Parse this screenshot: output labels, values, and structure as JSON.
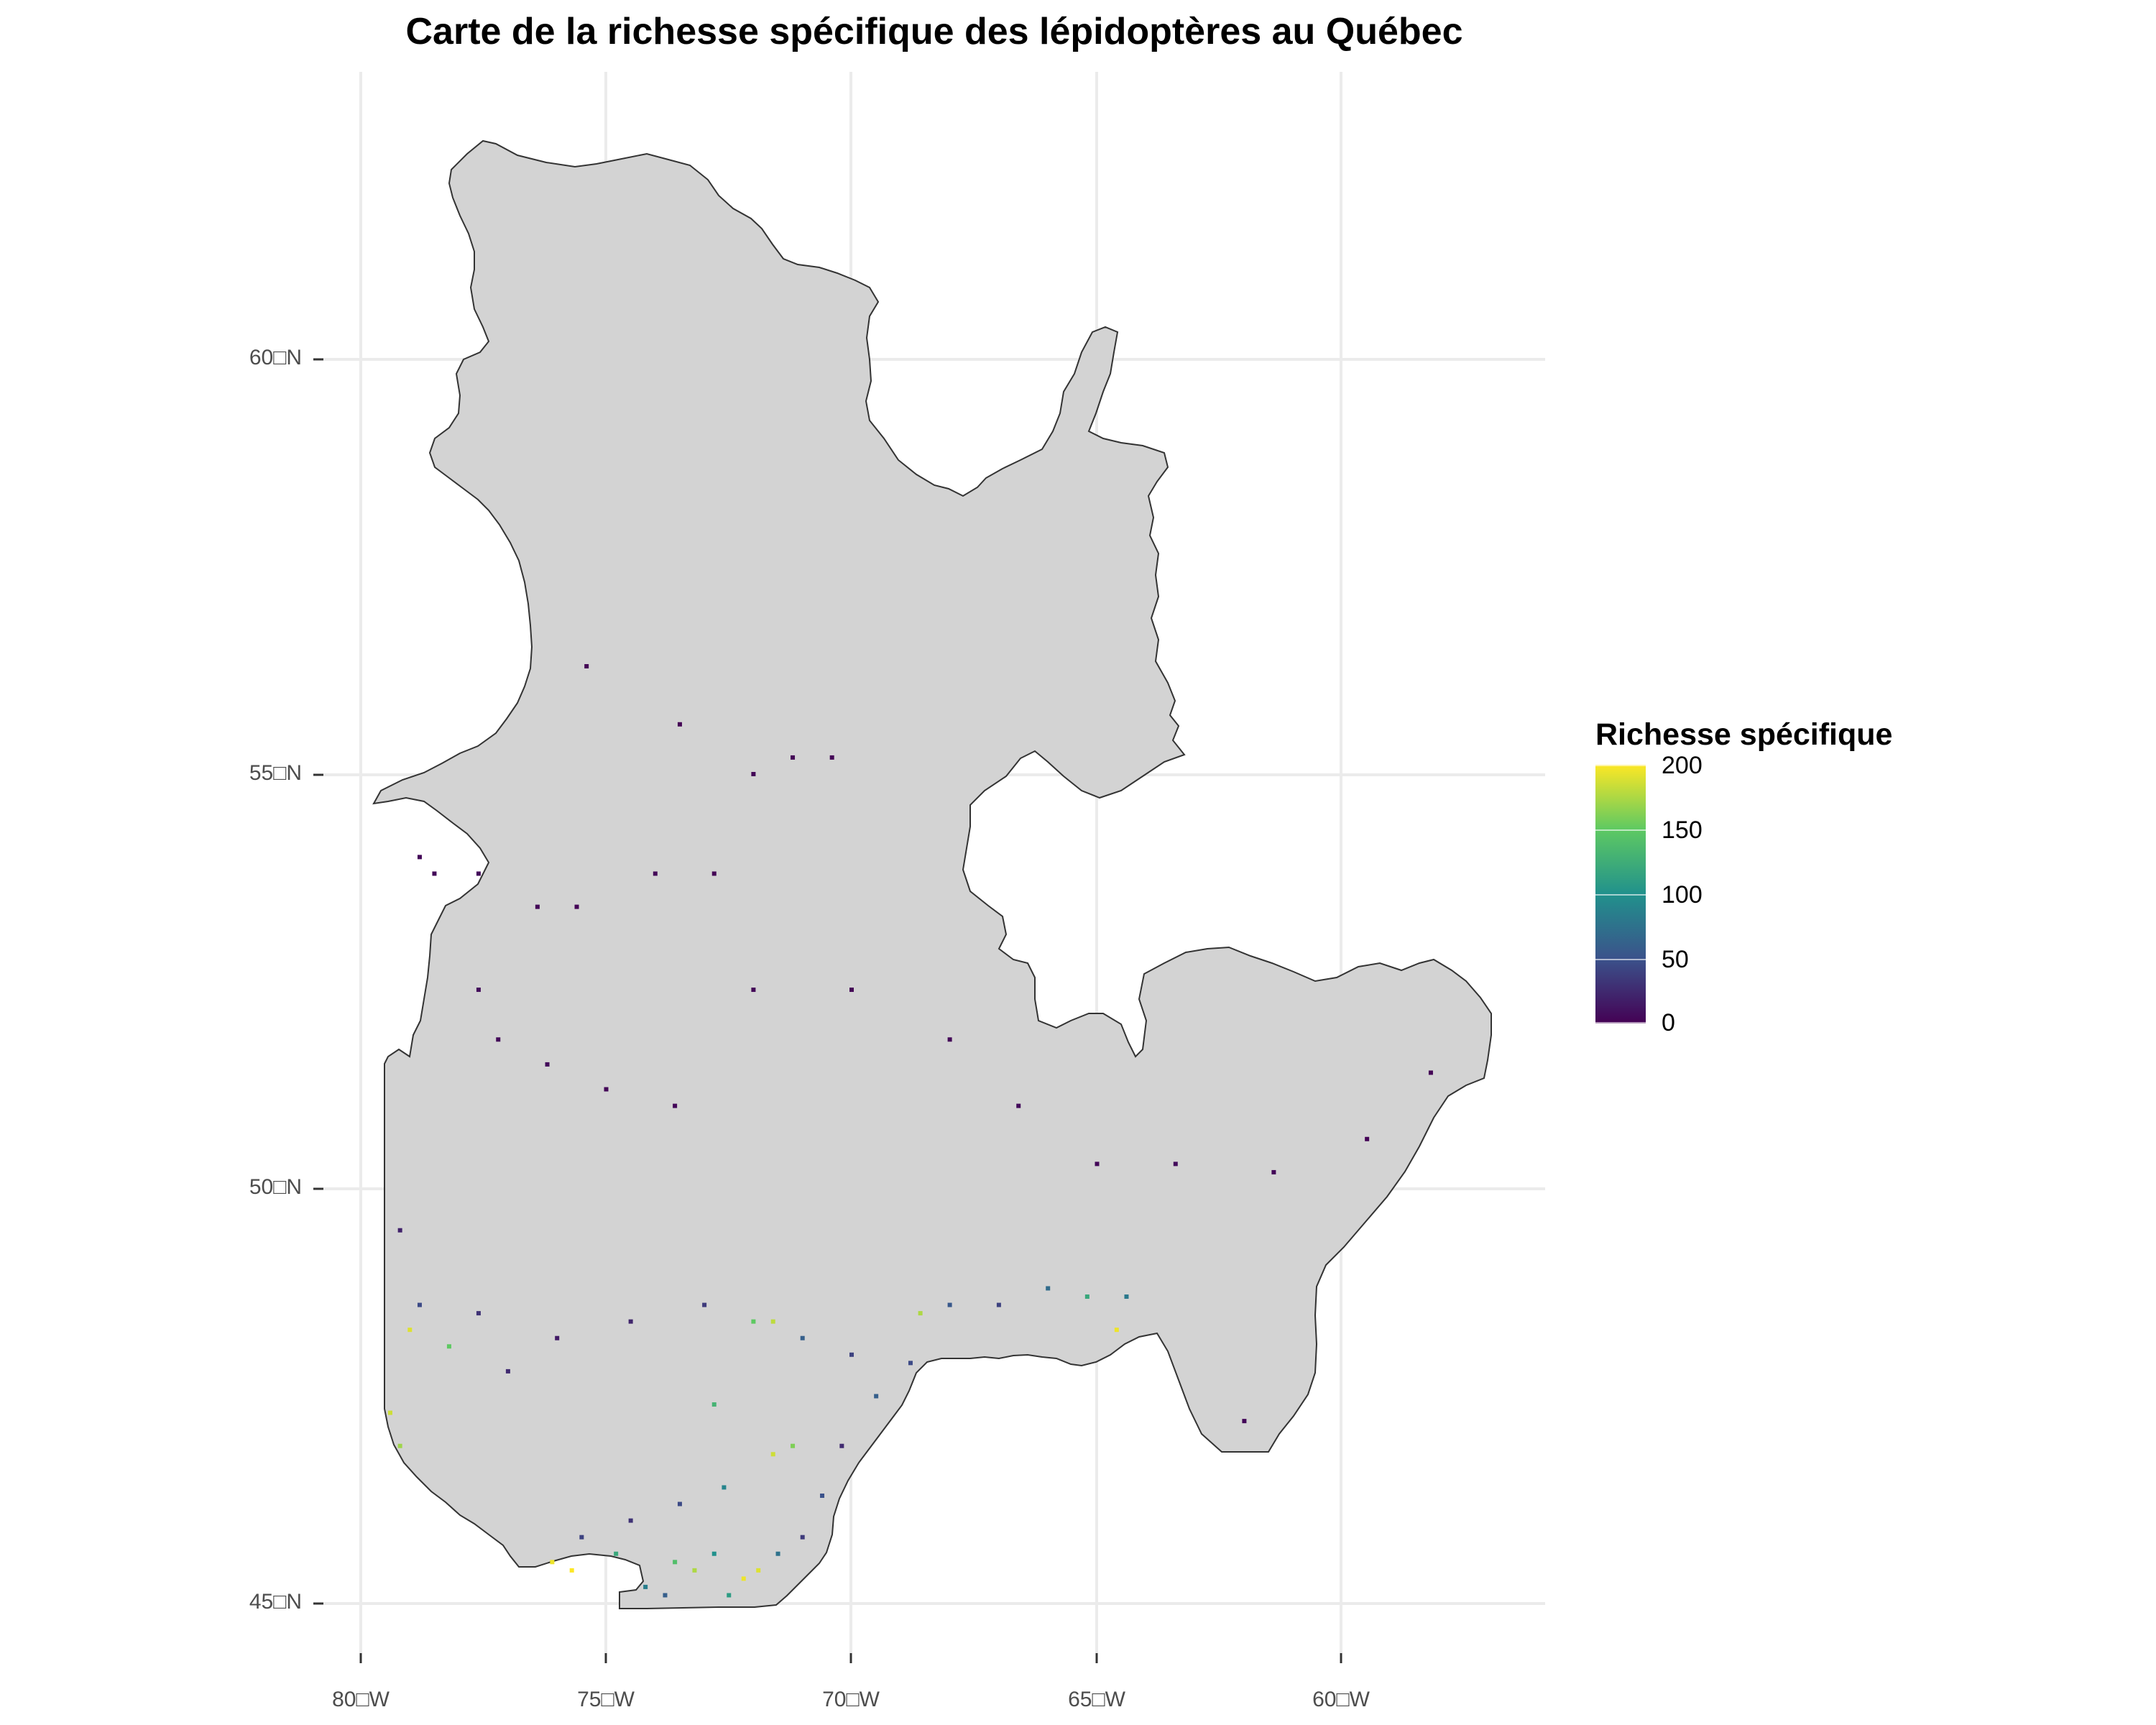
{
  "title": "Carte de la richesse spécifique des lépidoptères au Québec",
  "axes": {
    "latitude_ticks": [
      "60□N",
      "55□N",
      "50□N",
      "45□N"
    ],
    "longitude_ticks": [
      "80□W",
      "75□W",
      "70□W",
      "65□W",
      "60□W"
    ]
  },
  "legend": {
    "title": "Richesse spécifique",
    "ticks": [
      "200",
      "150",
      "100",
      "50",
      "0"
    ],
    "scale_min": 0,
    "scale_max": 200,
    "colors": [
      "#440154",
      "#3b528b",
      "#21918c",
      "#5ec962",
      "#fde725"
    ]
  },
  "map": {
    "land_color": "#d3d3d3",
    "border_color": "#333333",
    "grid_color": "#ebebeb",
    "cells": [
      {
        "lon": -78.8,
        "lat": 54.0,
        "v": 3
      },
      {
        "lon": -78.5,
        "lat": 53.8,
        "v": 4
      },
      {
        "lon": -77.6,
        "lat": 53.8,
        "v": 5
      },
      {
        "lon": -76.4,
        "lat": 53.4,
        "v": 3
      },
      {
        "lon": -75.6,
        "lat": 53.4,
        "v": 2
      },
      {
        "lon": -74.0,
        "lat": 53.8,
        "v": 4
      },
      {
        "lon": -72.8,
        "lat": 53.8,
        "v": 2
      },
      {
        "lon": -72.0,
        "lat": 55.0,
        "v": 3
      },
      {
        "lon": -71.2,
        "lat": 55.2,
        "v": 2
      },
      {
        "lon": -70.4,
        "lat": 55.2,
        "v": 2
      },
      {
        "lon": -75.4,
        "lat": 56.3,
        "v": 1
      },
      {
        "lon": -73.5,
        "lat": 55.6,
        "v": 1
      },
      {
        "lon": -77.6,
        "lat": 52.4,
        "v": 6
      },
      {
        "lon": -77.2,
        "lat": 51.8,
        "v": 4
      },
      {
        "lon": -76.2,
        "lat": 51.5,
        "v": 5
      },
      {
        "lon": -75.0,
        "lat": 51.2,
        "v": 3
      },
      {
        "lon": -73.6,
        "lat": 51.0,
        "v": 4
      },
      {
        "lon": -72.0,
        "lat": 52.4,
        "v": 3
      },
      {
        "lon": -70.0,
        "lat": 52.4,
        "v": 2
      },
      {
        "lon": -68.0,
        "lat": 51.8,
        "v": 3
      },
      {
        "lon": -66.6,
        "lat": 51.0,
        "v": 5
      },
      {
        "lon": -65.0,
        "lat": 50.3,
        "v": 4
      },
      {
        "lon": -63.4,
        "lat": 50.3,
        "v": 6
      },
      {
        "lon": -61.4,
        "lat": 50.2,
        "v": 3
      },
      {
        "lon": -58.2,
        "lat": 51.4,
        "v": 2
      },
      {
        "lon": -59.5,
        "lat": 50.6,
        "v": 2
      },
      {
        "lon": -62.0,
        "lat": 47.2,
        "v": 4
      },
      {
        "lon": -79.2,
        "lat": 49.5,
        "v": 20
      },
      {
        "lon": -78.8,
        "lat": 48.6,
        "v": 45
      },
      {
        "lon": -79.0,
        "lat": 48.3,
        "v": 190
      },
      {
        "lon": -78.2,
        "lat": 48.1,
        "v": 150
      },
      {
        "lon": -77.6,
        "lat": 48.5,
        "v": 30
      },
      {
        "lon": -79.4,
        "lat": 47.3,
        "v": 185
      },
      {
        "lon": -79.2,
        "lat": 46.9,
        "v": 170
      },
      {
        "lon": -77.0,
        "lat": 47.8,
        "v": 25
      },
      {
        "lon": -76.0,
        "lat": 48.2,
        "v": 15
      },
      {
        "lon": -74.5,
        "lat": 48.4,
        "v": 22
      },
      {
        "lon": -73.0,
        "lat": 48.6,
        "v": 35
      },
      {
        "lon": -72.0,
        "lat": 48.4,
        "v": 150
      },
      {
        "lon": -71.6,
        "lat": 48.4,
        "v": 180
      },
      {
        "lon": -71.0,
        "lat": 48.2,
        "v": 60
      },
      {
        "lon": -70.0,
        "lat": 48.0,
        "v": 40
      },
      {
        "lon": -68.6,
        "lat": 48.5,
        "v": 175
      },
      {
        "lon": -68.0,
        "lat": 48.6,
        "v": 55
      },
      {
        "lon": -67.0,
        "lat": 48.6,
        "v": 40
      },
      {
        "lon": -66.0,
        "lat": 48.8,
        "v": 70
      },
      {
        "lon": -65.2,
        "lat": 48.7,
        "v": 120
      },
      {
        "lon": -64.6,
        "lat": 48.3,
        "v": 195
      },
      {
        "lon": -64.4,
        "lat": 48.7,
        "v": 80
      },
      {
        "lon": -72.8,
        "lat": 47.4,
        "v": 130
      },
      {
        "lon": -71.6,
        "lat": 46.8,
        "v": 185
      },
      {
        "lon": -71.2,
        "lat": 46.9,
        "v": 160
      },
      {
        "lon": -72.6,
        "lat": 46.4,
        "v": 90
      },
      {
        "lon": -73.5,
        "lat": 46.2,
        "v": 45
      },
      {
        "lon": -74.5,
        "lat": 46.0,
        "v": 30
      },
      {
        "lon": -75.5,
        "lat": 45.8,
        "v": 40
      },
      {
        "lon": -76.1,
        "lat": 45.5,
        "v": 195
      },
      {
        "lon": -75.7,
        "lat": 45.4,
        "v": 200
      },
      {
        "lon": -74.8,
        "lat": 45.6,
        "v": 120
      },
      {
        "lon": -73.6,
        "lat": 45.5,
        "v": 140
      },
      {
        "lon": -73.2,
        "lat": 45.4,
        "v": 175
      },
      {
        "lon": -72.8,
        "lat": 45.6,
        "v": 100
      },
      {
        "lon": -72.2,
        "lat": 45.3,
        "v": 195
      },
      {
        "lon": -71.9,
        "lat": 45.4,
        "v": 190
      },
      {
        "lon": -71.5,
        "lat": 45.6,
        "v": 75
      },
      {
        "lon": -74.2,
        "lat": 45.2,
        "v": 85
      },
      {
        "lon": -73.8,
        "lat": 45.1,
        "v": 60
      },
      {
        "lon": -72.5,
        "lat": 45.1,
        "v": 110
      },
      {
        "lon": -71.0,
        "lat": 45.8,
        "v": 35
      },
      {
        "lon": -70.6,
        "lat": 46.3,
        "v": 50
      },
      {
        "lon": -70.2,
        "lat": 46.9,
        "v": 25
      },
      {
        "lon": -69.5,
        "lat": 47.5,
        "v": 60
      },
      {
        "lon": -68.8,
        "lat": 47.9,
        "v": 45
      }
    ]
  }
}
